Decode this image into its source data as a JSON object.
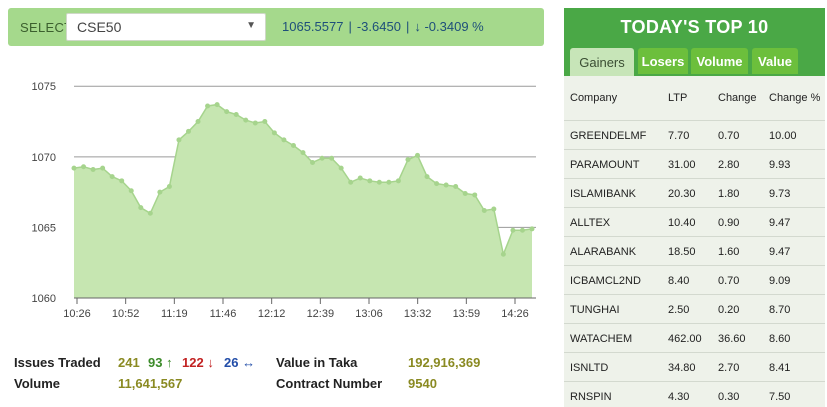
{
  "selector": {
    "label": "SELECT",
    "value": "CSE50",
    "arrow": "▼"
  },
  "index": {
    "value": "1065.5577",
    "change": "-3.6450",
    "percent": "-0.3409 %",
    "down_arrow": "↓"
  },
  "chart_data": {
    "type": "area",
    "title": "",
    "xlabel": "",
    "ylabel": "",
    "ylim": [
      1060,
      1077
    ],
    "y_ticks": [
      1060,
      1065,
      1070,
      1075
    ],
    "x_tick_labels": [
      "10:26",
      "10:52",
      "11:19",
      "11:46",
      "12:12",
      "12:39",
      "13:06",
      "13:32",
      "13:59",
      "14:26"
    ],
    "grid": true,
    "fill_color": "#c6e6b1",
    "line_color": "#a6d48d",
    "series": [
      {
        "values": [
          1069.2,
          1069.3,
          1069.1,
          1069.2,
          1068.6,
          1068.3,
          1067.6,
          1066.4,
          1066.0,
          1067.5,
          1067.9,
          1071.2,
          1071.8,
          1072.5,
          1073.6,
          1073.7,
          1073.2,
          1073.0,
          1072.6,
          1072.4,
          1072.5,
          1071.7,
          1071.2,
          1070.8,
          1070.3,
          1069.6,
          1069.9,
          1069.9,
          1069.2,
          1068.2,
          1068.5,
          1068.3,
          1068.2,
          1068.2,
          1068.3,
          1069.8,
          1070.1,
          1068.6,
          1068.1,
          1068.0,
          1067.9,
          1067.4,
          1067.3,
          1066.2,
          1066.3,
          1063.1,
          1064.8,
          1064.8,
          1064.9
        ]
      }
    ]
  },
  "stats": {
    "issues_traded_label": "Issues Traded",
    "issues_traded": "241",
    "advanced": "93",
    "declined": "122",
    "unchanged": "26",
    "up_arrow": "↑",
    "down_arrow": "↓",
    "flat_arrow": "↔",
    "volume_label": "Volume",
    "volume": "11,641,567",
    "value_label": "Value in Taka",
    "value": "192,916,369",
    "contract_label": "Contract Number",
    "contract": "9540"
  },
  "top10": {
    "title": "TODAY'S TOP 10",
    "tabs": [
      {
        "label": "Gainers",
        "active": true
      },
      {
        "label": "Losers",
        "active": false
      },
      {
        "label": "Volume",
        "active": false
      },
      {
        "label": "Value",
        "active": false
      }
    ],
    "columns": {
      "company": "Company",
      "ltp": "LTP",
      "change": "Change",
      "change_pct": "Change %"
    },
    "rows": [
      {
        "company": "GREENDELMF",
        "ltp": "7.70",
        "change": "0.70",
        "pct": "10.00"
      },
      {
        "company": "PARAMOUNT",
        "ltp": "31.00",
        "change": "2.80",
        "pct": "9.93"
      },
      {
        "company": "ISLAMIBANK",
        "ltp": "20.30",
        "change": "1.80",
        "pct": "9.73"
      },
      {
        "company": "ALLTEX",
        "ltp": "10.40",
        "change": "0.90",
        "pct": "9.47"
      },
      {
        "company": "ALARABANK",
        "ltp": "18.50",
        "change": "1.60",
        "pct": "9.47"
      },
      {
        "company": "ICBAMCL2ND",
        "ltp": "8.40",
        "change": "0.70",
        "pct": "9.09"
      },
      {
        "company": "TUNGHAI",
        "ltp": "2.50",
        "change": "0.20",
        "pct": "8.70"
      },
      {
        "company": "WATACHEM",
        "ltp": "462.00",
        "change": "36.60",
        "pct": "8.60"
      },
      {
        "company": "ISNLTD",
        "ltp": "34.80",
        "change": "2.70",
        "pct": "8.41"
      },
      {
        "company": "RNSPIN",
        "ltp": "4.30",
        "change": "0.30",
        "pct": "7.50"
      }
    ]
  }
}
